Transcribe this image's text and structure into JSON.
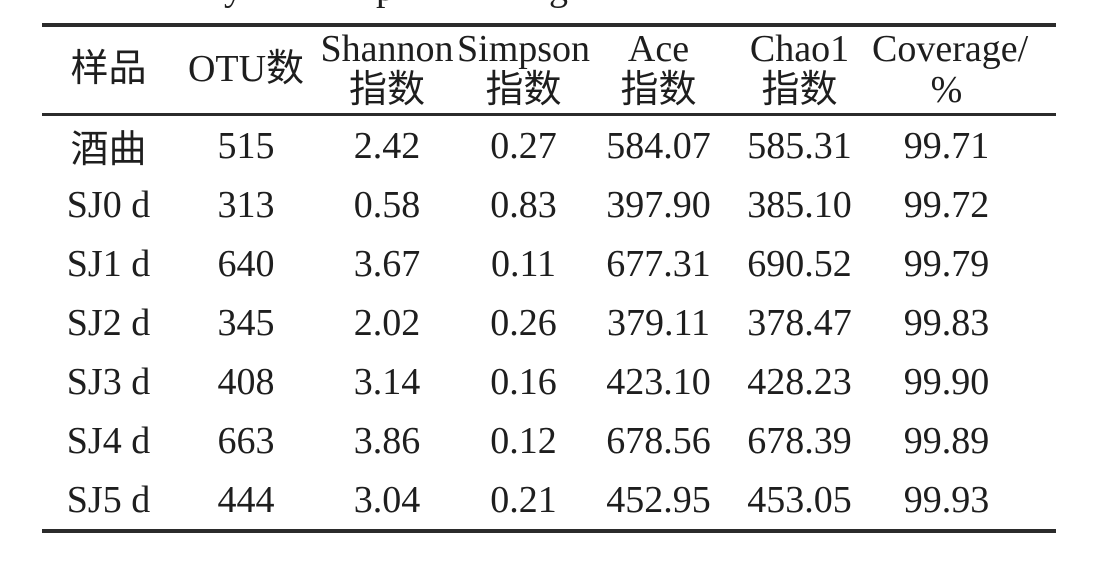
{
  "caption_fragments": [
    "y",
    "p",
    "g"
  ],
  "table": {
    "headers": [
      "样品",
      "OTU数",
      "Shannon\n指数",
      "Simpson\n指数",
      "Ace\n指数",
      "Chao1\n指数",
      "Coverage/\n%"
    ],
    "rows": [
      {
        "sample": "酒曲",
        "values": [
          "515",
          "2.42",
          "0.27",
          "584.07",
          "585.31",
          "99.71"
        ]
      },
      {
        "sample": "SJ0 d",
        "values": [
          "313",
          "0.58",
          "0.83",
          "397.90",
          "385.10",
          "99.72"
        ]
      },
      {
        "sample": "SJ1 d",
        "values": [
          "640",
          "3.67",
          "0.11",
          "677.31",
          "690.52",
          "99.79"
        ]
      },
      {
        "sample": "SJ2 d",
        "values": [
          "345",
          "2.02",
          "0.26",
          "379.11",
          "378.47",
          "99.83"
        ]
      },
      {
        "sample": "SJ3 d",
        "values": [
          "408",
          "3.14",
          "0.16",
          "423.10",
          "428.23",
          "99.90"
        ]
      },
      {
        "sample": "SJ4 d",
        "values": [
          "663",
          "3.86",
          "0.12",
          "678.56",
          "678.39",
          "99.89"
        ]
      },
      {
        "sample": "SJ5 d",
        "values": [
          "444",
          "3.04",
          "0.21",
          "452.95",
          "453.05",
          "99.93"
        ]
      }
    ],
    "colors": {
      "rule": "#2b2b2b",
      "text": "#1e1e1e",
      "background": "#ffffff"
    }
  }
}
